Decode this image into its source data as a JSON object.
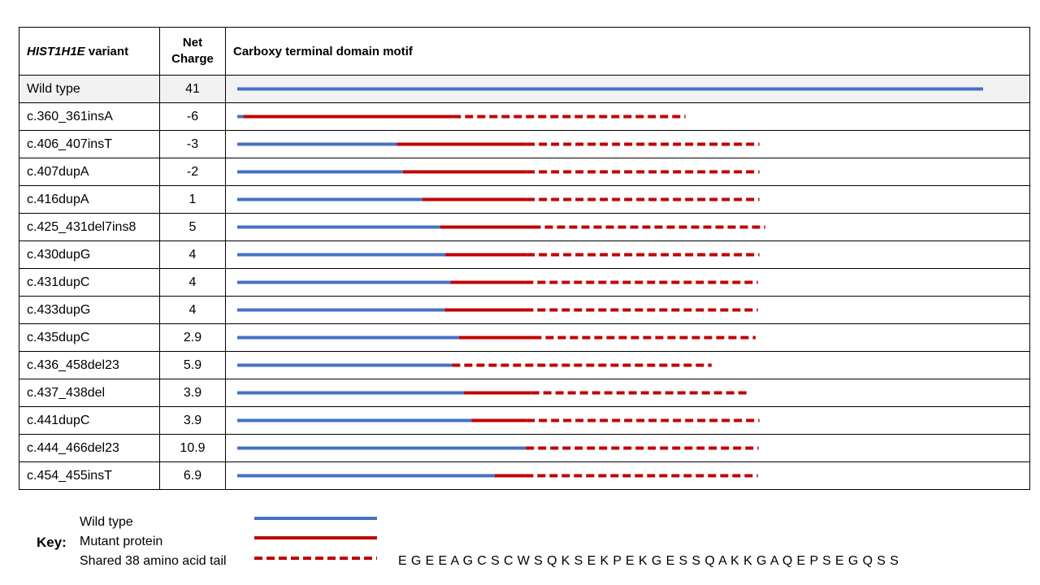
{
  "colors": {
    "wild_type": "#4472c4",
    "mutant": "#c00000",
    "row_highlight": "#f2f2f2"
  },
  "header": {
    "gene": "HIST1H1E",
    "variant_suffix": " variant",
    "charge_line1": "Net",
    "charge_line2": "Charge",
    "motif": "Carboxy terminal domain motif"
  },
  "chart_data": {
    "type": "diagram",
    "rows": [
      {
        "variant": "Wild type",
        "charge": "41",
        "wt": 100.0,
        "mut": 0,
        "tail": 0
      },
      {
        "variant": "c.360_361insA",
        "charge": "-6",
        "wt": 0.8,
        "mut": 28.1,
        "tail": 31.2
      },
      {
        "variant": "c.406_407insT",
        "charge": "-3",
        "wt": 21.4,
        "mut": 17.4,
        "tail": 31.2
      },
      {
        "variant": "c.407dupA",
        "charge": "-2",
        "wt": 22.2,
        "mut": 16.6,
        "tail": 31.2
      },
      {
        "variant": "c.416dupA",
        "charge": "1",
        "wt": 24.8,
        "mut": 14.0,
        "tail": 31.2
      },
      {
        "variant": "c.425_431del7ins8",
        "charge": "5",
        "wt": 27.2,
        "mut": 12.4,
        "tail": 31.2
      },
      {
        "variant": "c.430dupG",
        "charge": "4",
        "wt": 27.9,
        "mut": 10.9,
        "tail": 31.2
      },
      {
        "variant": "c.431dupC",
        "charge": "4",
        "wt": 28.6,
        "mut": 10.0,
        "tail": 31.2
      },
      {
        "variant": "c.433dupG",
        "charge": "4",
        "wt": 27.8,
        "mut": 10.8,
        "tail": 31.2
      },
      {
        "variant": "c.435dupC",
        "charge": "2.9",
        "wt": 29.7,
        "mut": 10.0,
        "tail": 29.8
      },
      {
        "variant": "c.436_458del23",
        "charge": "5.9",
        "wt": 28.8,
        "mut": 0,
        "tail": 34.8
      },
      {
        "variant": "c.437_438del",
        "charge": "3.9",
        "wt": 30.4,
        "mut": 9.0,
        "tail": 29.1
      },
      {
        "variant": "c.441dupC",
        "charge": "3.9",
        "wt": 31.4,
        "mut": 7.4,
        "tail": 31.2
      },
      {
        "variant": "c.444_466del23",
        "charge": "10.9",
        "wt": 38.7,
        "mut": 0,
        "tail": 31.2
      },
      {
        "variant": "c.454_455insT",
        "charge": "6.9",
        "wt": 34.5,
        "mut": 4.1,
        "tail": 31.2
      }
    ]
  },
  "key": {
    "title": "Key:",
    "wild_type": "Wild type",
    "mutant": "Mutant protein",
    "tail": "Shared 38 amino acid tail",
    "sequence": "E G E E A G C S C W S Q K S E K P E K G E S S Q A K K G A Q E P S E G Q S S"
  }
}
